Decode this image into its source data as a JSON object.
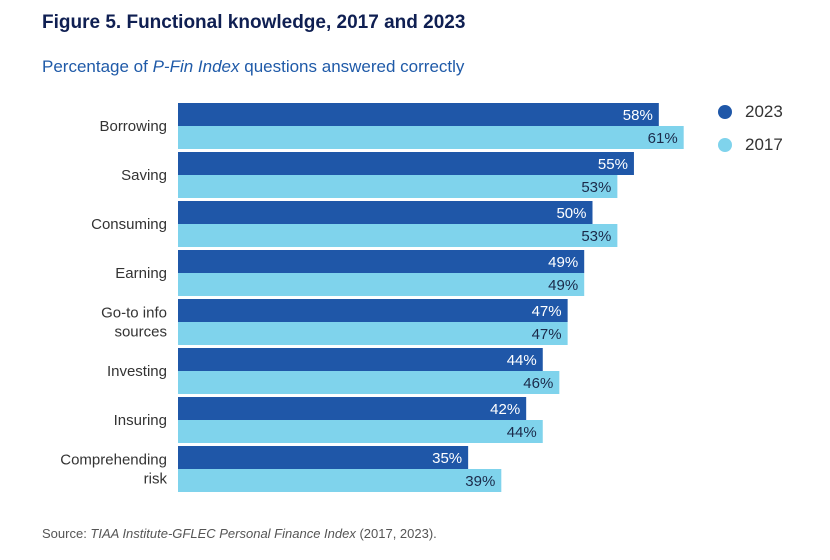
{
  "title": "Figure 5. Functional knowledge, 2017 and 2023",
  "subtitle": {
    "prefix": "Percentage of ",
    "emphasis": "P-Fin Index",
    "suffix": " questions answered correctly"
  },
  "source": {
    "prefix": "Source: ",
    "emphasis": "TIAA Institute-GFLEC Personal Finance Index",
    "suffix": " (2017, 2023)."
  },
  "colors": {
    "dark_bar": "#1f57a8",
    "light_bar": "#7fd3ec",
    "dark_text": "#ffffff",
    "light_text": "#1b2a4a",
    "title": "#0f1f52",
    "subtitle": "#1f5aa8"
  },
  "chart_data": {
    "type": "bar",
    "orientation": "horizontal",
    "categories": [
      [
        "Borrowing"
      ],
      [
        "Saving"
      ],
      [
        "Consuming"
      ],
      [
        "Earning"
      ],
      [
        "Go-to info",
        "sources"
      ],
      [
        "Investing"
      ],
      [
        "Insuring"
      ],
      [
        "Comprehending",
        "risk"
      ]
    ],
    "series": [
      {
        "name": "2023",
        "values": [
          58,
          55,
          50,
          49,
          47,
          44,
          42,
          35
        ]
      },
      {
        "name": "2017",
        "values": [
          61,
          53,
          53,
          49,
          47,
          46,
          44,
          39
        ]
      }
    ],
    "value_suffix": "%",
    "legend_position": "top-right",
    "grid": false
  }
}
